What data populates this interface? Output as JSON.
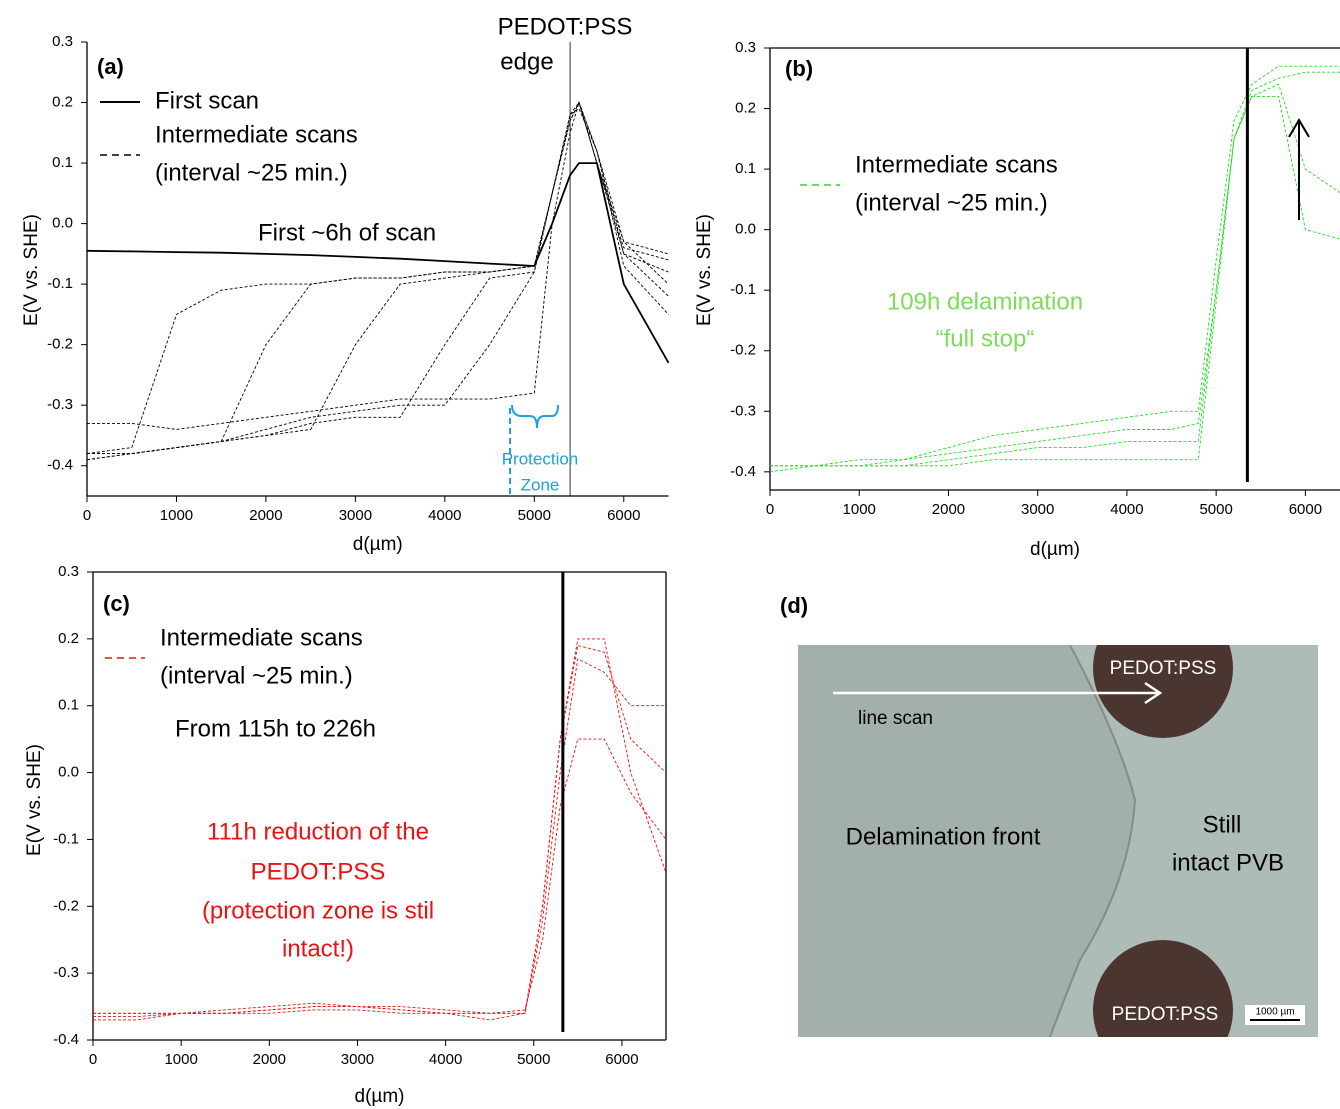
{
  "chart_data": [
    {
      "type": "line",
      "panel_label": "(a)",
      "xlabel": "d(µm)",
      "ylabel": "E(V vs. SHE)",
      "xlim": [
        0,
        6500
      ],
      "ylim": [
        -0.45,
        0.3
      ],
      "xticks": [
        0,
        1000,
        2000,
        3000,
        4000,
        5000,
        6000
      ],
      "yticks": [
        -0.4,
        -0.3,
        -0.2,
        -0.1,
        {
          "value": 0,
          "label": "0.0"
        },
        0.1,
        0.2,
        0.3
      ],
      "edge_x": 5400,
      "x": [
        0,
        500,
        1000,
        1500,
        2000,
        2500,
        3000,
        3500,
        4000,
        4500,
        5000,
        5200,
        5400,
        5500,
        5700,
        6000,
        6500
      ],
      "series": [
        {
          "name": [
            "First scan"
          ],
          "color": "#000000",
          "style": "solid",
          "scans": [
            [
              -0.045,
              -0.046,
              -0.047,
              -0.048,
              -0.05,
              -0.052,
              -0.055,
              -0.058,
              -0.062,
              -0.066,
              -0.07,
              0.0,
              0.08,
              0.1,
              0.1,
              -0.1,
              -0.23
            ]
          ]
        },
        {
          "name": [
            "Intermediate scans",
            "(interval ~25 min.)"
          ],
          "color": "#000000",
          "style": "dashed",
          "scans": [
            [
              -0.38,
              -0.37,
              -0.15,
              -0.11,
              -0.1,
              -0.1,
              -0.09,
              -0.09,
              -0.08,
              -0.08,
              -0.07,
              0.05,
              0.17,
              0.2,
              0.12,
              -0.03,
              -0.05
            ],
            [
              -0.38,
              -0.38,
              -0.37,
              -0.36,
              -0.2,
              -0.1,
              -0.09,
              -0.09,
              -0.08,
              -0.08,
              -0.07,
              0.05,
              0.17,
              0.2,
              0.1,
              -0.05,
              -0.08
            ],
            [
              -0.39,
              -0.38,
              -0.37,
              -0.36,
              -0.35,
              -0.34,
              -0.2,
              -0.1,
              -0.09,
              -0.08,
              -0.07,
              0.05,
              0.17,
              0.2,
              0.1,
              -0.03,
              -0.1
            ],
            [
              -0.39,
              -0.38,
              -0.37,
              -0.36,
              -0.35,
              -0.33,
              -0.32,
              -0.32,
              -0.2,
              -0.09,
              -0.08,
              0.05,
              0.18,
              0.19,
              0.12,
              -0.05,
              -0.12
            ],
            [
              -0.38,
              -0.38,
              -0.37,
              -0.36,
              -0.34,
              -0.32,
              -0.31,
              -0.3,
              -0.3,
              -0.2,
              -0.08,
              0.05,
              0.18,
              0.2,
              0.12,
              -0.07,
              -0.15
            ],
            [
              -0.33,
              -0.33,
              -0.34,
              -0.33,
              -0.32,
              -0.31,
              -0.3,
              -0.29,
              -0.29,
              -0.29,
              -0.28,
              0.0,
              0.15,
              0.2,
              0.1,
              -0.04,
              -0.06
            ]
          ]
        }
      ],
      "annotations": [
        {
          "lines": [
            "PEDOT:PSS"
          ],
          "color": "#000000"
        },
        {
          "lines": [
            "edge"
          ],
          "color": "#000000"
        },
        {
          "lines": [
            "First ~6h of scan"
          ],
          "color": "#000000"
        },
        {
          "lines": [
            "Protection",
            "Zone"
          ],
          "color": "#1ea0dc"
        }
      ]
    },
    {
      "type": "line",
      "panel_label": "(b)",
      "xlabel": "d(µm)",
      "ylabel": "E(V vs. SHE)",
      "xlim": [
        0,
        6500
      ],
      "ylim": [
        -0.43,
        0.3
      ],
      "xticks": [
        0,
        1000,
        2000,
        3000,
        4000,
        5000,
        6000
      ],
      "yticks": [
        -0.4,
        -0.3,
        -0.2,
        -0.1,
        {
          "value": 0,
          "label": "0.0"
        },
        0.1,
        0.2,
        0.3
      ],
      "edge_x": 5350,
      "x": [
        0,
        500,
        1000,
        1500,
        2000,
        2500,
        3000,
        3500,
        4000,
        4500,
        4800,
        5000,
        5200,
        5400,
        5700,
        6000,
        6500
      ],
      "series": [
        {
          "name": [
            "Intermediate scans",
            "(interval ~25 min.)"
          ],
          "color": "#22dd22",
          "style": "dashed",
          "scans": [
            [
              -0.39,
              -0.39,
              -0.39,
              -0.39,
              -0.38,
              -0.37,
              -0.36,
              -0.36,
              -0.35,
              -0.35,
              -0.35,
              -0.1,
              0.15,
              0.23,
              0.25,
              0.26,
              0.26
            ],
            [
              -0.4,
              -0.39,
              -0.39,
              -0.38,
              -0.37,
              -0.36,
              -0.35,
              -0.34,
              -0.33,
              -0.33,
              -0.32,
              -0.1,
              0.15,
              0.22,
              0.22,
              0.0,
              -0.02
            ],
            [
              -0.39,
              -0.39,
              -0.39,
              -0.39,
              -0.39,
              -0.38,
              -0.38,
              -0.38,
              -0.38,
              -0.38,
              -0.38,
              -0.12,
              0.15,
              0.22,
              0.24,
              0.1,
              0.05
            ],
            [
              -0.39,
              -0.39,
              -0.38,
              -0.38,
              -0.36,
              -0.34,
              -0.33,
              -0.32,
              -0.31,
              -0.3,
              -0.3,
              -0.05,
              0.18,
              0.24,
              0.27,
              0.27,
              0.27
            ]
          ]
        }
      ],
      "annotations": [
        {
          "lines": [
            "109h delamination",
            "“full stop“"
          ],
          "color": "#7ddc5a"
        }
      ]
    },
    {
      "type": "line",
      "panel_label": "(c)",
      "xlabel": "d(µm)",
      "ylabel": "E(V vs. SHE)",
      "xlim": [
        0,
        6500
      ],
      "ylim": [
        -0.4,
        0.3
      ],
      "xticks": [
        0,
        1000,
        2000,
        3000,
        4000,
        5000,
        6000
      ],
      "yticks": [
        -0.4,
        -0.3,
        -0.2,
        -0.1,
        {
          "value": 0,
          "label": "0.0"
        },
        0.1,
        0.2,
        0.3
      ],
      "edge_x": 5330,
      "x": [
        0,
        500,
        1000,
        1500,
        2000,
        2500,
        3000,
        3500,
        4000,
        4500,
        4900,
        5100,
        5300,
        5500,
        5800,
        6100,
        6500
      ],
      "series": [
        {
          "name": [
            "Intermediate scans",
            "(interval ~25 min.)"
          ],
          "color": "#ee1111",
          "style": "dashed",
          "scans": [
            [
              -0.36,
              -0.36,
              -0.36,
              -0.36,
              -0.355,
              -0.35,
              -0.35,
              -0.355,
              -0.36,
              -0.36,
              -0.36,
              -0.2,
              0.05,
              0.2,
              0.2,
              0.0,
              -0.15
            ],
            [
              -0.37,
              -0.37,
              -0.36,
              -0.36,
              -0.36,
              -0.355,
              -0.355,
              -0.36,
              -0.36,
              -0.37,
              -0.36,
              -0.22,
              0.0,
              0.17,
              0.15,
              0.1,
              0.1
            ],
            [
              -0.36,
              -0.36,
              -0.36,
              -0.355,
              -0.35,
              -0.345,
              -0.35,
              -0.35,
              -0.355,
              -0.36,
              -0.355,
              -0.25,
              -0.05,
              0.05,
              0.05,
              -0.03,
              -0.1
            ],
            [
              -0.365,
              -0.365,
              -0.36,
              -0.36,
              -0.355,
              -0.35,
              -0.35,
              -0.355,
              -0.36,
              -0.36,
              -0.36,
              -0.2,
              0.05,
              0.19,
              0.18,
              0.05,
              0.0
            ]
          ]
        }
      ],
      "annotations": [
        {
          "lines": [
            "From 115h to 226h"
          ],
          "color": "#000000"
        },
        {
          "lines": [
            "111h reduction of the",
            "PEDOT:PSS",
            "(protection zone is stil",
            "intact!)"
          ],
          "color": "#ee1111"
        }
      ]
    }
  ],
  "micrograph": {
    "panel_label": "(d)",
    "top_spot": "PEDOT:PSS",
    "scan_label": "line scan",
    "front_label": "Delamination front",
    "intact_label": [
      "Still",
      "intact PVB"
    ],
    "bottom_spot": "PEDOT:PSS",
    "scale_bar": "1000 µm"
  }
}
